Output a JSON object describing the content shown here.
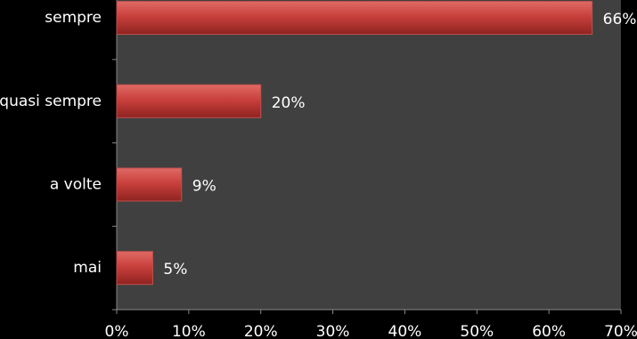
{
  "chart_data": {
    "type": "hbar",
    "categories": [
      "sempre",
      "quasi sempre",
      "a volte",
      "mai"
    ],
    "values": [
      66,
      20,
      9,
      5
    ],
    "value_labels": [
      "66%",
      "20%",
      "9%",
      "5%"
    ],
    "color": "#c0504d",
    "xlim": [
      0,
      70
    ],
    "xticks": [
      {
        "value": 0,
        "label": "0%"
      },
      {
        "value": 10,
        "label": "10%"
      },
      {
        "value": 20,
        "label": "20%"
      },
      {
        "value": 30,
        "label": "30%"
      },
      {
        "value": 40,
        "label": "40%"
      },
      {
        "value": 50,
        "label": "50%"
      },
      {
        "value": 60,
        "label": "60%"
      },
      {
        "value": 70,
        "label": "70%"
      }
    ],
    "grid": false
  }
}
